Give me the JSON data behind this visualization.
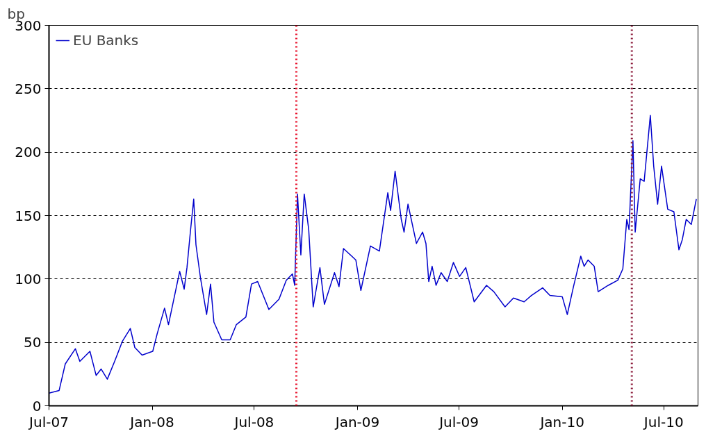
{
  "chart_data": {
    "type": "line",
    "ylabel": "bp",
    "x": [
      "2007-07-01",
      "2007-07-19",
      "2007-07-30",
      "2007-08-17",
      "2007-08-25",
      "2007-09-12",
      "2007-09-23",
      "2007-10-02",
      "2007-10-13",
      "2007-10-26",
      "2007-11-09",
      "2007-11-23",
      "2007-12-01",
      "2007-12-14",
      "2008-01-02",
      "2008-01-10",
      "2008-01-23",
      "2008-01-30",
      "2008-02-19",
      "2008-02-27",
      "2008-03-03",
      "2008-03-09",
      "2008-03-15",
      "2008-03-19",
      "2008-03-27",
      "2008-04-07",
      "2008-04-14",
      "2008-04-20",
      "2008-05-04",
      "2008-05-19",
      "2008-05-30",
      "2008-06-16",
      "2008-06-26",
      "2008-07-07",
      "2008-07-27",
      "2008-08-14",
      "2008-08-27",
      "2008-09-07",
      "2008-09-11",
      "2008-09-16",
      "2008-09-22",
      "2008-09-28",
      "2008-10-06",
      "2008-10-14",
      "2008-10-26",
      "2008-11-03",
      "2008-11-21",
      "2008-11-29",
      "2008-12-07",
      "2008-12-29",
      "2009-01-07",
      "2009-01-24",
      "2009-02-09",
      "2009-02-24",
      "2009-03-01",
      "2009-03-09",
      "2009-03-20",
      "2009-03-25",
      "2009-04-01",
      "2009-04-16",
      "2009-04-27",
      "2009-05-03",
      "2009-05-08",
      "2009-05-14",
      "2009-05-21",
      "2009-05-30",
      "2009-06-10",
      "2009-06-21",
      "2009-07-02",
      "2009-07-13",
      "2009-07-28",
      "2009-08-19",
      "2009-09-01",
      "2009-09-21",
      "2009-10-06",
      "2009-10-25",
      "2009-11-07",
      "2009-11-27",
      "2009-12-10",
      "2010-01-01",
      "2010-01-10",
      "2010-01-21",
      "2010-02-03",
      "2010-02-09",
      "2010-02-16",
      "2010-02-27",
      "2010-03-06",
      "2010-03-24",
      "2010-04-10",
      "2010-04-19",
      "2010-04-26",
      "2010-04-30",
      "2010-05-07",
      "2010-05-11",
      "2010-05-20",
      "2010-05-27",
      "2010-06-07",
      "2010-06-13",
      "2010-06-20",
      "2010-06-27",
      "2010-07-08",
      "2010-07-19",
      "2010-07-28",
      "2010-08-03",
      "2010-08-10",
      "2010-08-19",
      "2010-08-28"
    ],
    "series": [
      {
        "name": "EU Banks",
        "color": "#0000cc",
        "values": [
          10,
          12,
          33,
          45,
          35,
          43,
          24,
          29,
          21,
          35,
          51,
          61,
          46,
          40,
          43,
          57,
          77,
          64,
          106,
          92,
          109,
          137,
          163,
          127,
          101,
          72,
          96,
          66,
          52,
          52,
          64,
          70,
          96,
          98,
          76,
          84,
          99,
          104,
          95,
          167,
          119,
          167,
          139,
          78,
          109,
          80,
          105,
          94,
          124,
          115,
          91,
          126,
          122,
          168,
          154,
          185,
          147,
          137,
          159,
          128,
          137,
          128,
          98,
          110,
          95,
          105,
          98,
          113,
          102,
          109,
          82,
          95,
          90,
          78,
          85,
          82,
          87,
          93,
          87,
          86,
          72,
          94,
          118,
          110,
          115,
          110,
          90,
          95,
          99,
          108,
          147,
          139,
          209,
          137,
          179,
          177,
          229,
          189,
          159,
          189,
          155,
          153,
          123,
          131,
          147,
          143,
          163
        ]
      }
    ],
    "xlim": [
      "2007-07-01",
      "2010-08-31"
    ],
    "xticks": [
      {
        "value": "2007-07-01",
        "label": "Jul-07"
      },
      {
        "value": "2008-01-01",
        "label": "Jan-08"
      },
      {
        "value": "2008-07-01",
        "label": "Jul-08"
      },
      {
        "value": "2009-01-01",
        "label": "Jan-09"
      },
      {
        "value": "2009-07-01",
        "label": "Jul-09"
      },
      {
        "value": "2010-01-01",
        "label": "Jan-10"
      },
      {
        "value": "2010-07-01",
        "label": "Jul-10"
      }
    ],
    "ylim": [
      0,
      300
    ],
    "yticks": [
      0,
      50,
      100,
      150,
      200,
      250,
      300
    ],
    "grid": "y",
    "legend": "top left",
    "line_style": "solid",
    "ref_lines": [
      {
        "axis": "x",
        "value": "2008-09-14",
        "color": "#e8102a",
        "line_style": "dotted"
      },
      {
        "axis": "x",
        "value": "2010-05-05",
        "color": "#8b1a3a",
        "line_style": "dotted"
      }
    ]
  }
}
